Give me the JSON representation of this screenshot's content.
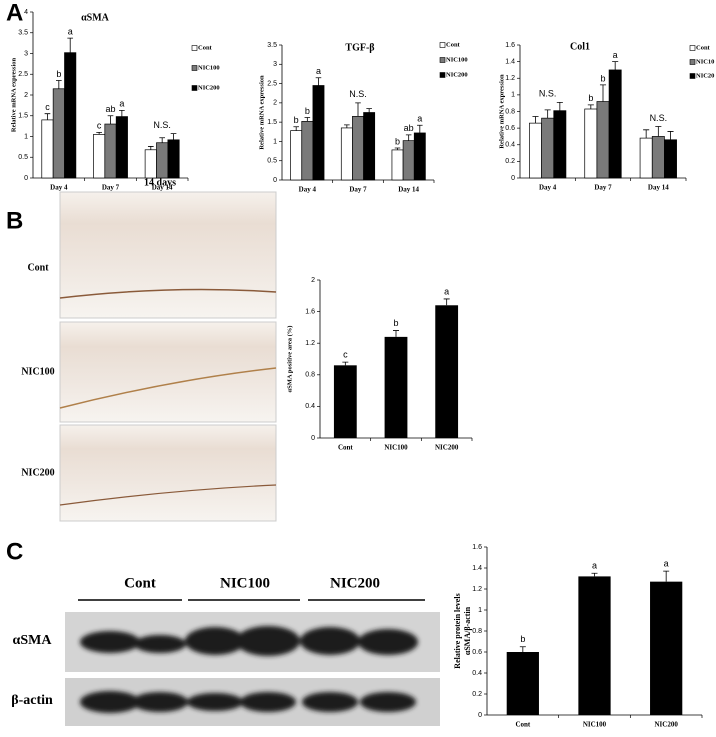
{
  "panel_labels": [
    "A",
    "B",
    "C"
  ],
  "histology": {
    "title": "14 days",
    "labels": [
      "Cont",
      "NIC100",
      "NIC200"
    ]
  },
  "blot": {
    "groups": [
      "Cont",
      "NIC100",
      "NIC200"
    ],
    "rows": [
      "αSMA",
      "β-actin"
    ]
  },
  "chart_data": [
    {
      "type": "grouped_bar",
      "title": "αSMA",
      "y_label": "Relative mRNA expression",
      "categories": [
        "Day 4",
        "Day 7",
        "Day 14"
      ],
      "series": [
        {
          "name": "Cont",
          "color": "#ffffff",
          "values": [
            1.4,
            1.05,
            0.68
          ],
          "errors": [
            0.15,
            0.05,
            0.08
          ],
          "letters": [
            "c",
            "c",
            null
          ]
        },
        {
          "name": "NIC100",
          "color": "#7a7a7a",
          "values": [
            2.15,
            1.3,
            0.85
          ],
          "errors": [
            0.2,
            0.2,
            0.12
          ],
          "letters": [
            "b",
            "ab",
            null
          ]
        },
        {
          "name": "NIC200",
          "color": "#000000",
          "values": [
            3.02,
            1.48,
            0.92
          ],
          "errors": [
            0.35,
            0.15,
            0.15
          ],
          "letters": [
            "a",
            "a",
            null
          ]
        }
      ],
      "category_notes": [
        null,
        null,
        "N.S."
      ],
      "ylim": [
        0,
        4
      ],
      "yticks": [
        0,
        0.5,
        1,
        1.5,
        2,
        2.5,
        3,
        3.5,
        4
      ]
    },
    {
      "type": "grouped_bar",
      "title": "TGF-β",
      "y_label": "Relative mRNA expression",
      "categories": [
        "Day 4",
        "Day 7",
        "Day 14"
      ],
      "series": [
        {
          "name": "Cont",
          "color": "#ffffff",
          "values": [
            1.28,
            1.35,
            0.78
          ],
          "errors": [
            0.1,
            0.08,
            0.05
          ],
          "letters": [
            "b",
            null,
            "b"
          ]
        },
        {
          "name": "NIC100",
          "color": "#7a7a7a",
          "values": [
            1.52,
            1.65,
            1.02
          ],
          "errors": [
            0.1,
            0.35,
            0.15
          ],
          "letters": [
            "b",
            null,
            "ab"
          ]
        },
        {
          "name": "NIC200",
          "color": "#000000",
          "values": [
            2.45,
            1.75,
            1.22
          ],
          "errors": [
            0.2,
            0.1,
            0.2
          ],
          "letters": [
            "a",
            null,
            "a"
          ]
        }
      ],
      "category_notes": [
        null,
        "N.S.",
        null
      ],
      "ylim": [
        0,
        3.5
      ],
      "yticks": [
        0,
        0.5,
        1,
        1.5,
        2,
        2.5,
        3,
        3.5
      ]
    },
    {
      "type": "grouped_bar",
      "title": "Col1",
      "y_label": "Relative mRNA expression",
      "categories": [
        "Day 4",
        "Day 7",
        "Day 14"
      ],
      "series": [
        {
          "name": "Cont",
          "color": "#ffffff",
          "values": [
            0.66,
            0.83,
            0.48
          ],
          "errors": [
            0.08,
            0.05,
            0.1
          ],
          "letters": [
            null,
            "b",
            null
          ]
        },
        {
          "name": "NIC10",
          "color": "#7a7a7a",
          "values": [
            0.72,
            0.92,
            0.5
          ],
          "errors": [
            0.1,
            0.2,
            0.12
          ],
          "letters": [
            null,
            "b",
            null
          ]
        },
        {
          "name": "NIC20",
          "color": "#000000",
          "values": [
            0.81,
            1.3,
            0.46
          ],
          "errors": [
            0.1,
            0.1,
            0.1
          ],
          "letters": [
            null,
            "a",
            null
          ]
        }
      ],
      "category_notes": [
        "N.S.",
        null,
        "N.S."
      ],
      "ylim": [
        0,
        1.6
      ],
      "yticks": [
        0,
        0.2,
        0.4,
        0.6,
        0.8,
        1,
        1.2,
        1.4,
        1.6
      ]
    },
    {
      "type": "bar",
      "y_label": "αSMA positive area (%)",
      "categories": [
        "Cont",
        "NIC100",
        "NIC200"
      ],
      "color": "#000000",
      "values": [
        0.92,
        1.28,
        1.68
      ],
      "errors": [
        0.04,
        0.08,
        0.08
      ],
      "letters": [
        "c",
        "b",
        "a"
      ],
      "ylim": [
        0,
        2
      ],
      "yticks": [
        0,
        0.4,
        0.8,
        1.2,
        1.6,
        2
      ]
    },
    {
      "type": "bar",
      "y_label": [
        "Relative protein levels",
        "αSMA/β-actin"
      ],
      "categories": [
        "Cont",
        "NIC100",
        "NIC200"
      ],
      "color": "#000000",
      "values": [
        0.6,
        1.32,
        1.27
      ],
      "errors": [
        0.05,
        0.03,
        0.1
      ],
      "letters": [
        "b",
        "a",
        "a"
      ],
      "ylim": [
        0,
        1.6
      ],
      "yticks": [
        0,
        0.2,
        0.4,
        0.6,
        0.8,
        1,
        1.2,
        1.4,
        1.6
      ]
    }
  ]
}
